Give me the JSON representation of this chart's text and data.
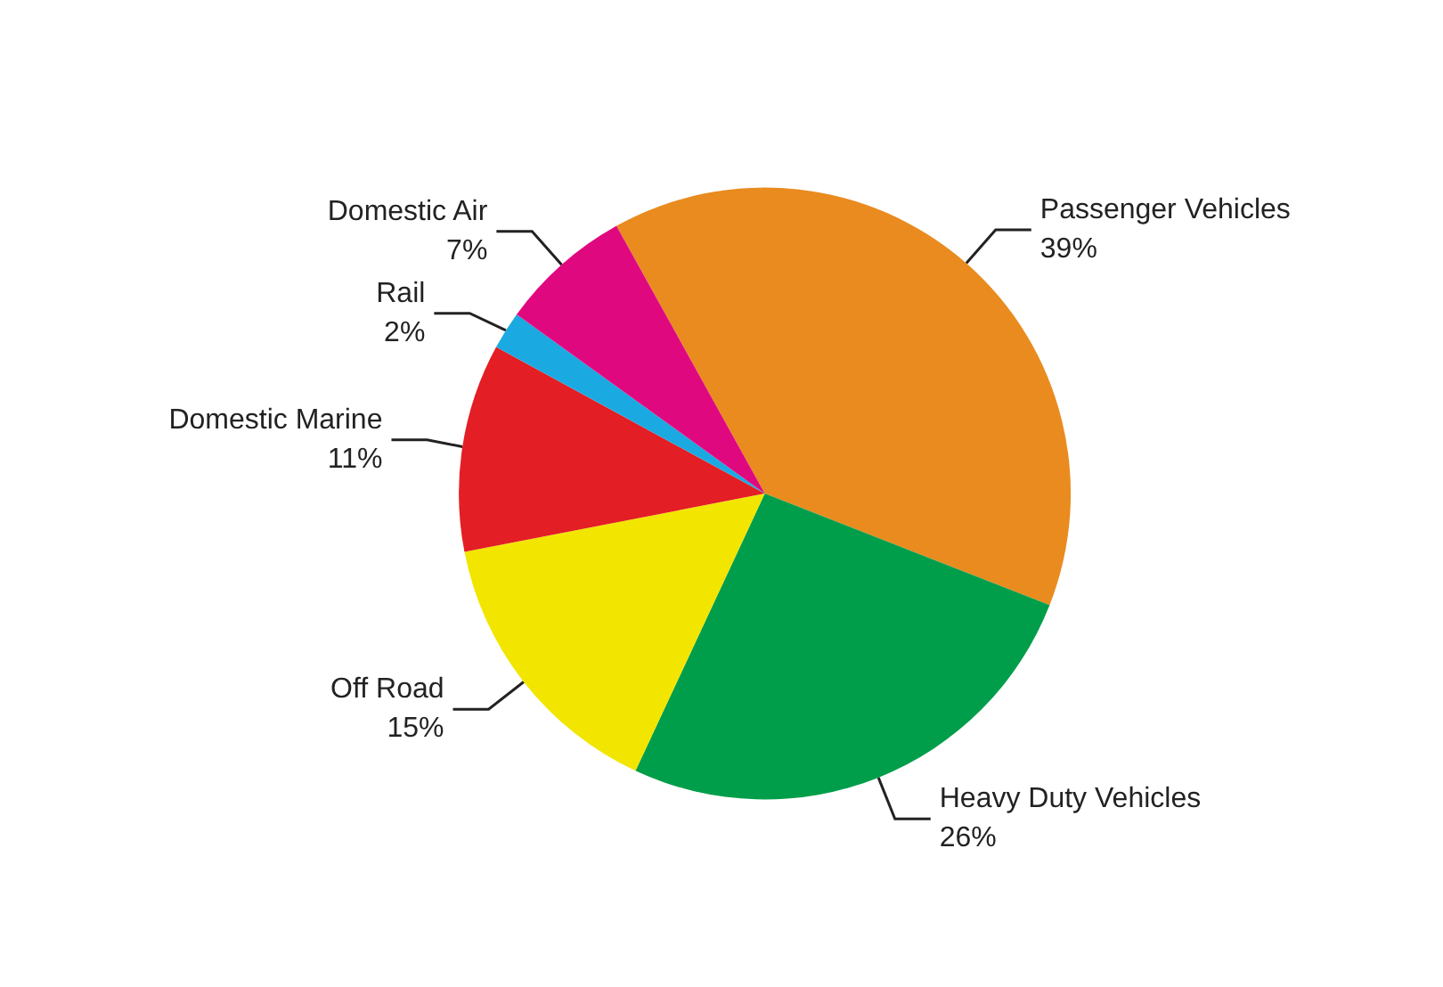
{
  "chart_data": {
    "type": "pie",
    "categories": [
      "Passenger Vehicles",
      "Heavy Duty Vehicles",
      "Off Road",
      "Domestic Marine",
      "Rail",
      "Domestic Air"
    ],
    "values": [
      39,
      26,
      15,
      11,
      2,
      7
    ],
    "value_labels": [
      "39%",
      "26%",
      "15%",
      "11%",
      "2%",
      "7%"
    ],
    "colors": [
      "#e98b1e",
      "#009e4a",
      "#f2e500",
      "#e31e24",
      "#1ba9e1",
      "#e0087f"
    ],
    "legend": false
  }
}
